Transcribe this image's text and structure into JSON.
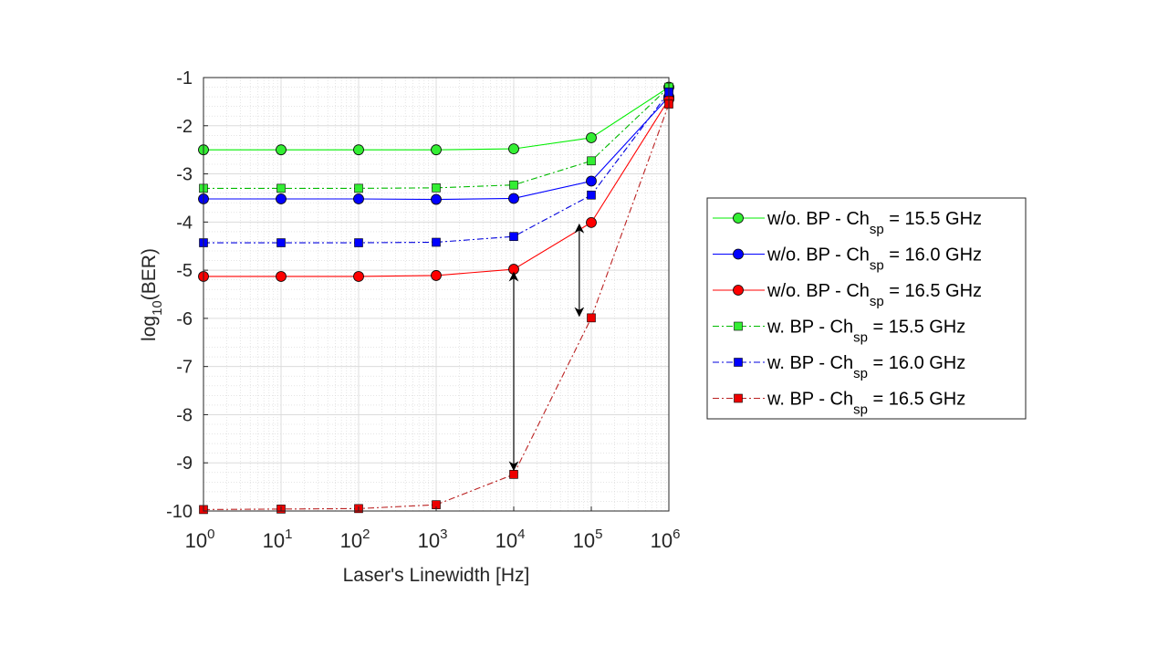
{
  "chart_data": {
    "type": "line",
    "xlabel": "Laser's Linewidth [Hz]",
    "ylabel_parts": [
      "log",
      "10",
      "(BER)"
    ],
    "x_scale": "log",
    "x": [
      1,
      10,
      100,
      1000,
      10000,
      100000,
      1000000
    ],
    "x_tick_labels": [
      {
        "base": "10",
        "exp": "0"
      },
      {
        "base": "10",
        "exp": "1"
      },
      {
        "base": "10",
        "exp": "2"
      },
      {
        "base": "10",
        "exp": "3"
      },
      {
        "base": "10",
        "exp": "4"
      },
      {
        "base": "10",
        "exp": "5"
      },
      {
        "base": "10",
        "exp": "6"
      }
    ],
    "ylim": [
      -10,
      -1
    ],
    "y_ticks": [
      -10,
      -9,
      -8,
      -7,
      -6,
      -5,
      -4,
      -3,
      -2,
      -1
    ],
    "grid": true,
    "minor_grid": true,
    "legend_position": "outside-right",
    "series": [
      {
        "name_parts": [
          "w/o. BP - Ch",
          "sp",
          " = 15.5 GHz"
        ],
        "color": "#00ee00",
        "fill": "#33ee33",
        "dash": "solid",
        "marker": "circle",
        "values": [
          -2.5,
          -2.5,
          -2.5,
          -2.5,
          -2.48,
          -2.25,
          -1.2
        ]
      },
      {
        "name_parts": [
          "w/o. BP - Ch",
          "sp",
          " = 16.0 GHz"
        ],
        "color": "#0000ff",
        "fill": "#0000ff",
        "dash": "solid",
        "marker": "circle",
        "values": [
          -3.52,
          -3.52,
          -3.52,
          -3.53,
          -3.51,
          -3.15,
          -1.4
        ]
      },
      {
        "name_parts": [
          "w/o. BP - Ch",
          "sp",
          " = 16.5 GHz"
        ],
        "color": "#ff0000",
        "fill": "#ff0000",
        "dash": "solid",
        "marker": "circle",
        "values": [
          -5.13,
          -5.13,
          -5.13,
          -5.11,
          -4.98,
          -4.01,
          -1.45
        ]
      },
      {
        "name_parts": [
          "w. BP - Ch",
          "sp",
          " = 15.5 GHz"
        ],
        "color": "#00bb00",
        "fill": "#33ee33",
        "dash": "dashdot",
        "marker": "square",
        "values": [
          -3.3,
          -3.3,
          -3.3,
          -3.29,
          -3.23,
          -2.73,
          -1.2
        ]
      },
      {
        "name_parts": [
          "w. BP - Ch",
          "sp",
          " = 16.0 GHz"
        ],
        "color": "#0000dd",
        "fill": "#0000ff",
        "dash": "dashdot",
        "marker": "square",
        "values": [
          -4.43,
          -4.43,
          -4.43,
          -4.42,
          -4.3,
          -3.44,
          -1.3
        ]
      },
      {
        "name_parts": [
          "w. BP - Ch",
          "sp",
          " = 16.5 GHz"
        ],
        "color": "#bb2222",
        "fill": "#ee0000",
        "dash": "dashdot",
        "marker": "square",
        "values": [
          -9.97,
          -9.96,
          -9.95,
          -9.87,
          -9.24,
          -5.99,
          -1.55
        ]
      }
    ],
    "annotations": [
      {
        "type": "double-arrow",
        "x": 10000,
        "y1": -5.05,
        "y2": -9.15
      },
      {
        "type": "double-arrow",
        "x": 70000,
        "y1": -4.05,
        "y2": -5.95
      }
    ]
  }
}
